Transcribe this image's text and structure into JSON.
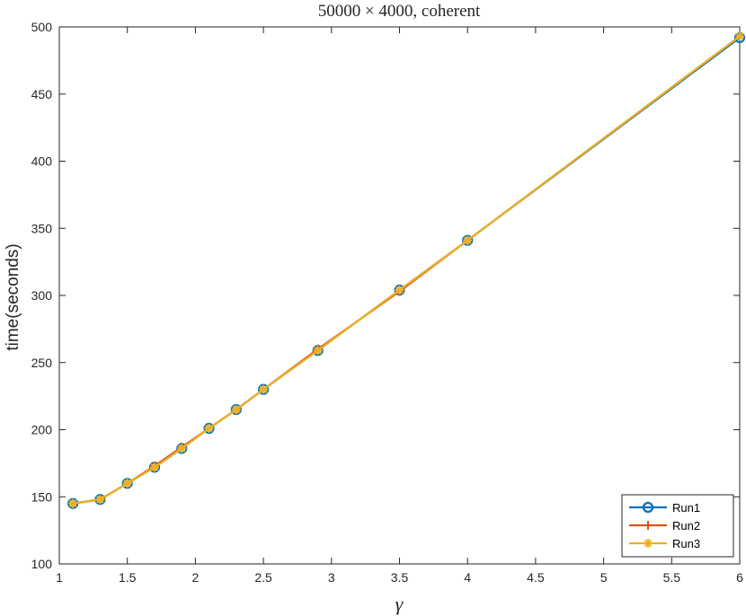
{
  "chart_data": {
    "type": "line",
    "title": "50000 × 4000, coherent",
    "xlabel": "γ",
    "ylabel": "time(seconds)",
    "xlim": [
      1,
      6
    ],
    "ylim": [
      100,
      500
    ],
    "xticks": [
      1,
      1.5,
      2,
      2.5,
      3,
      3.5,
      4,
      4.5,
      5,
      5.5,
      6
    ],
    "xtick_labels": [
      "1",
      "1.5",
      "2",
      "2.5",
      "3",
      "3.5",
      "4",
      "4.5",
      "5",
      "5.5",
      "6"
    ],
    "yticks": [
      100,
      150,
      200,
      250,
      300,
      350,
      400,
      450,
      500
    ],
    "ytick_labels": [
      "100",
      "150",
      "200",
      "250",
      "300",
      "350",
      "400",
      "450",
      "500"
    ],
    "grid": false,
    "legend_position": "bottom-right",
    "x": [
      1.1,
      1.3,
      1.5,
      1.7,
      1.9,
      2.1,
      2.3,
      2.5,
      2.9,
      3.5,
      4.0,
      6.0
    ],
    "series": [
      {
        "name": "Run1",
        "color": "#0072BD",
        "marker": "circle",
        "values": [
          145,
          148,
          160,
          172,
          186,
          201,
          215,
          230,
          259,
          304,
          341,
          492
        ]
      },
      {
        "name": "Run2",
        "color": "#D95319",
        "marker": "plus",
        "values": [
          145,
          148,
          160,
          173,
          187,
          201,
          215,
          230,
          260,
          303,
          341,
          493
        ]
      },
      {
        "name": "Run3",
        "color": "#EDB120",
        "marker": "star",
        "values": [
          145,
          148,
          160,
          172,
          186,
          201,
          215,
          230,
          259,
          304,
          341,
          493
        ]
      }
    ]
  }
}
